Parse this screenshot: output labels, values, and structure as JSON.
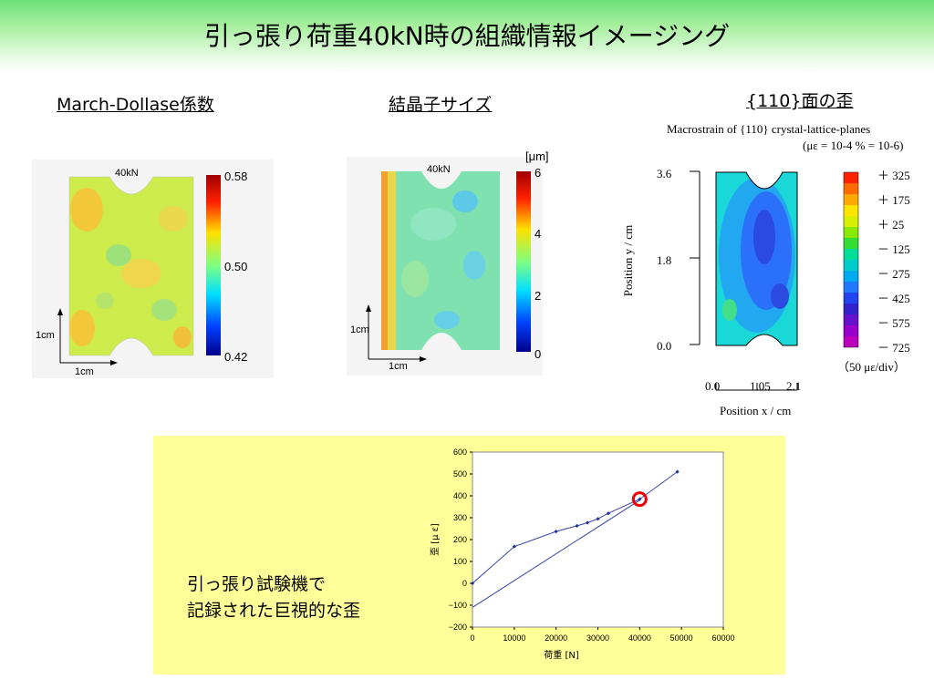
{
  "title": "引っ張り荷重40kN時の組織情報イメージング",
  "panel1": {
    "heading": "March-Dollase係数",
    "map_label": "40kN",
    "scale": [
      "0.58",
      "0.50",
      "0.42"
    ],
    "axis_v": "1cm",
    "axis_h": "1cm"
  },
  "panel2": {
    "heading": "結晶子サイズ",
    "map_label": "40kN",
    "unit": "[μm]",
    "scale": [
      "6",
      "4",
      "2",
      "0"
    ],
    "axis_v": "1cm",
    "axis_h": "1cm"
  },
  "panel3": {
    "heading": "{110}面の歪",
    "caption_line1": "Macrostrain of {110} crystal-lattice-planes",
    "caption_line2": "(με = 10-4 % = 10-6)",
    "y_ticks": [
      "3.6",
      "1.8",
      "0.0"
    ],
    "x_ticks": [
      "0.0",
      "1.05",
      "2.1"
    ],
    "ylabel": "Position y / cm",
    "xlabel": "Position x / cm",
    "legend": [
      "＋ 325",
      "＋ 175",
      "＋ 25",
      "－ 125",
      "－ 275",
      "－ 425",
      "－ 575",
      "－ 725"
    ],
    "legend_note": "（50 με/div）",
    "colors": [
      "#ff2200",
      "#ff6a00",
      "#ffaa00",
      "#ffe400",
      "#d6f000",
      "#88e800",
      "#33dd33",
      "#00dd99",
      "#00cccc",
      "#00aaee",
      "#2277ff",
      "#2244ee",
      "#3322cc",
      "#6611cc",
      "#9900cc",
      "#bb00bb"
    ]
  },
  "note": {
    "line1": "引っ張り試験機で",
    "line2": "記録された巨視的な歪"
  },
  "chart_data": {
    "type": "line",
    "xlabel": "荷重 [N]",
    "ylabel": "歪 [μ ε]",
    "xlim": [
      0,
      60000
    ],
    "ylim": [
      -200,
      600
    ],
    "x_ticks": [
      "0",
      "10000",
      "20000",
      "30000",
      "40000",
      "50000",
      "60000"
    ],
    "y_ticks": [
      "600",
      "500",
      "400",
      "300",
      "200",
      "100",
      "0",
      "−100",
      "−200"
    ],
    "series": [
      {
        "values": [
          [
            0,
            0
          ],
          [
            10000,
            168
          ],
          [
            20000,
            237
          ],
          [
            25000,
            263
          ],
          [
            27500,
            277
          ],
          [
            30000,
            295
          ],
          [
            32500,
            320
          ],
          [
            40000,
            385
          ],
          [
            49000,
            510
          ]
        ]
      },
      {
        "values": [
          [
            0,
            -110
          ],
          [
            40000,
            380
          ]
        ]
      }
    ],
    "highlight": [
      40000,
      385
    ]
  }
}
